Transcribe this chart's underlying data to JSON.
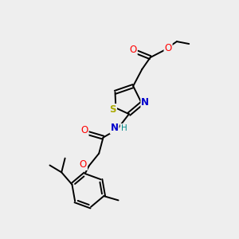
{
  "background_color": "#eeeeee",
  "atom_colors": {
    "C": "#000000",
    "H": "#008888",
    "N": "#0000cc",
    "O": "#ff0000",
    "S": "#aaaa00"
  },
  "figsize": [
    3.0,
    3.0
  ],
  "dpi": 100,
  "lw": 1.4
}
